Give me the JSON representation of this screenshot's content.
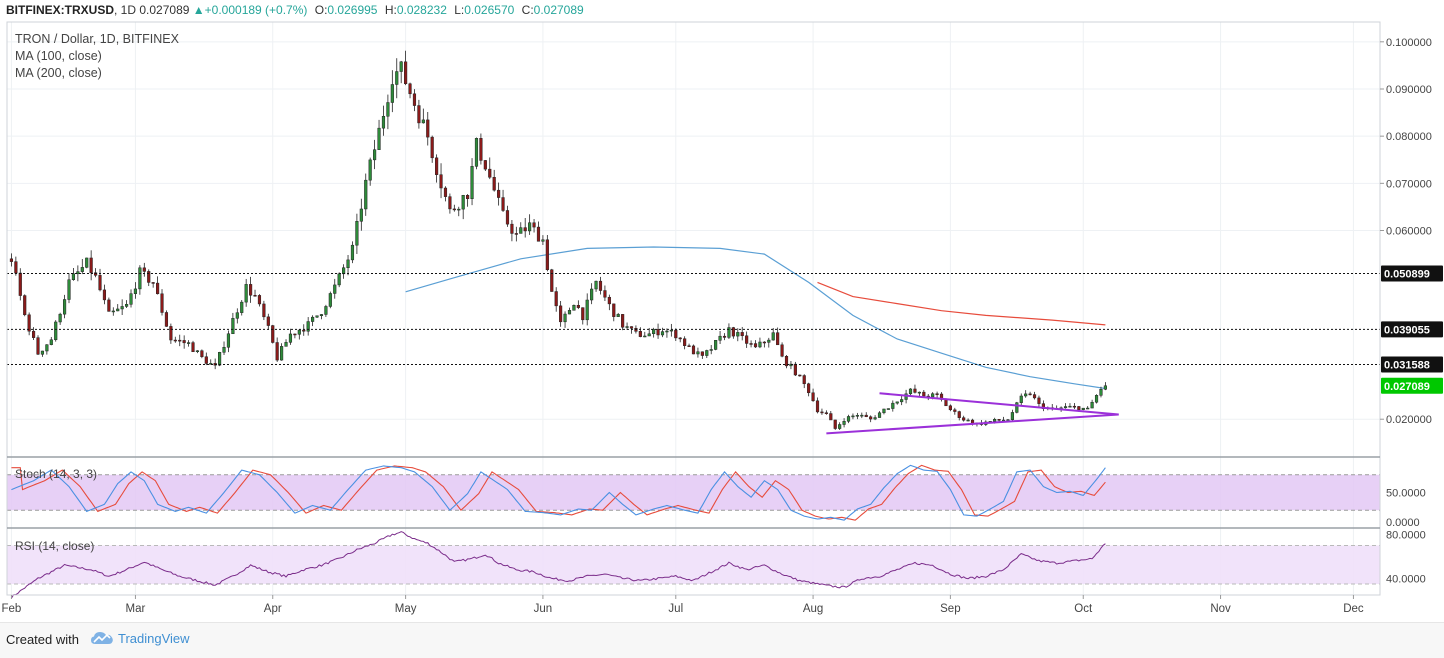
{
  "header": {
    "symbol": "BITFINEX:TRXUSD",
    "interval": "1D",
    "last": "0.027089",
    "change": "+0.000189 (+0.7%)",
    "open_label": "O:",
    "open": "0.026995",
    "high_label": "H:",
    "high": "0.028232",
    "low_label": "L:",
    "low": "0.026570",
    "close_label": "C:",
    "close": "0.027089",
    "up_color": "#26a69a"
  },
  "legend": {
    "title": "TRON / Dollar, 1D, BITFINEX",
    "ma100": "MA (100, close)",
    "ma200": "MA (200, close)"
  },
  "panes": {
    "stoch_label": "Stoch (14, 3, 3)",
    "rsi_label": "RSI (14, close)"
  },
  "footer": {
    "created_with": "Created with",
    "brand": "TradingView"
  },
  "chart_data": [
    {
      "type": "candlestick",
      "x_axis": {
        "ticks": [
          {
            "label": "Feb",
            "day": 0
          },
          {
            "label": "Mar",
            "day": 28
          },
          {
            "label": "Apr",
            "day": 59
          },
          {
            "label": "May",
            "day": 89
          },
          {
            "label": "Jun",
            "day": 120
          },
          {
            "label": "Jul",
            "day": 150
          },
          {
            "label": "Aug",
            "day": 181
          },
          {
            "label": "Sep",
            "day": 212
          },
          {
            "label": "Oct",
            "day": 242
          },
          {
            "label": "Nov",
            "day": 273
          },
          {
            "label": "Dec",
            "day": 303
          }
        ],
        "range": [
          -1,
          309
        ]
      },
      "y_axis": {
        "range": [
          0.0122,
          0.1042
        ],
        "ticks": [
          "0.100000",
          "0.090000",
          "0.080000",
          "0.070000",
          "0.060000",
          "0.020000"
        ]
      },
      "levels": [
        {
          "label": "0.050899",
          "value": 0.050899
        },
        {
          "label": "0.039055",
          "value": 0.039055
        },
        {
          "label": "0.031588",
          "value": 0.031588
        }
      ],
      "last_price": {
        "label": "0.027089",
        "value": 0.027089,
        "color": "#00c800"
      },
      "colors": {
        "up": "#2e8b3a",
        "down": "#8b1a1a",
        "ma100": "#5a9fd4",
        "ma200": "#e74c3c",
        "triangle": "#9b30d9"
      },
      "anchors": [
        [
          0,
          0.054
        ],
        [
          3,
          0.042
        ],
        [
          6,
          0.034
        ],
        [
          9,
          0.037
        ],
        [
          13,
          0.049
        ],
        [
          17,
          0.053
        ],
        [
          19,
          0.05
        ],
        [
          22,
          0.042
        ],
        [
          26,
          0.044
        ],
        [
          29,
          0.051
        ],
        [
          32,
          0.049
        ],
        [
          36,
          0.037
        ],
        [
          40,
          0.036
        ],
        [
          43,
          0.033
        ],
        [
          46,
          0.031
        ],
        [
          50,
          0.041
        ],
        [
          53,
          0.048
        ],
        [
          55,
          0.046
        ],
        [
          58,
          0.039
        ],
        [
          60,
          0.033
        ],
        [
          63,
          0.038
        ],
        [
          67,
          0.04
        ],
        [
          70,
          0.043
        ],
        [
          73,
          0.048
        ],
        [
          77,
          0.056
        ],
        [
          80,
          0.07
        ],
        [
          83,
          0.081
        ],
        [
          86,
          0.093
        ],
        [
          88,
          0.094
        ],
        [
          91,
          0.087
        ],
        [
          94,
          0.08
        ],
        [
          97,
          0.07
        ],
        [
          99,
          0.064
        ],
        [
          103,
          0.068
        ],
        [
          105,
          0.078
        ],
        [
          107,
          0.074
        ],
        [
          111,
          0.063
        ],
        [
          114,
          0.059
        ],
        [
          117,
          0.061
        ],
        [
          120,
          0.058
        ],
        [
          122,
          0.047
        ],
        [
          124,
          0.04
        ],
        [
          127,
          0.045
        ],
        [
          129,
          0.042
        ],
        [
          132,
          0.049
        ],
        [
          135,
          0.044
        ],
        [
          138,
          0.04
        ],
        [
          141,
          0.038
        ],
        [
          144,
          0.038
        ],
        [
          147,
          0.039
        ],
        [
          150,
          0.038
        ],
        [
          153,
          0.035
        ],
        [
          156,
          0.033
        ],
        [
          159,
          0.036
        ],
        [
          162,
          0.039
        ],
        [
          165,
          0.037
        ],
        [
          168,
          0.035
        ],
        [
          172,
          0.038
        ],
        [
          174,
          0.033
        ],
        [
          177,
          0.03
        ],
        [
          180,
          0.026
        ],
        [
          182,
          0.022
        ],
        [
          184,
          0.021
        ],
        [
          186,
          0.018
        ],
        [
          188,
          0.02
        ],
        [
          191,
          0.021
        ],
        [
          194,
          0.02
        ],
        [
          197,
          0.022
        ],
        [
          200,
          0.024
        ],
        [
          203,
          0.026
        ],
        [
          206,
          0.025
        ],
        [
          209,
          0.025
        ],
        [
          212,
          0.022
        ],
        [
          215,
          0.02
        ],
        [
          218,
          0.019
        ],
        [
          221,
          0.0195
        ],
        [
          225,
          0.02
        ],
        [
          228,
          0.0245
        ],
        [
          230,
          0.0255
        ],
        [
          232,
          0.023
        ],
        [
          235,
          0.022
        ],
        [
          238,
          0.0225
        ],
        [
          241,
          0.0225
        ],
        [
          243,
          0.022
        ],
        [
          245,
          0.025
        ],
        [
          246,
          0.0265
        ],
        [
          247,
          0.027089
        ]
      ],
      "ma100": [
        [
          89,
          0.047
        ],
        [
          100,
          0.05
        ],
        [
          115,
          0.054
        ],
        [
          130,
          0.0562
        ],
        [
          145,
          0.0565
        ],
        [
          160,
          0.0562
        ],
        [
          170,
          0.055
        ],
        [
          180,
          0.049
        ],
        [
          190,
          0.042
        ],
        [
          200,
          0.037
        ],
        [
          210,
          0.034
        ],
        [
          220,
          0.031
        ],
        [
          230,
          0.029
        ],
        [
          240,
          0.0275
        ],
        [
          247,
          0.0265
        ]
      ],
      "ma200": [
        [
          182,
          0.049
        ],
        [
          190,
          0.046
        ],
        [
          200,
          0.0445
        ],
        [
          210,
          0.043
        ],
        [
          220,
          0.042
        ],
        [
          235,
          0.041
        ],
        [
          247,
          0.04
        ]
      ],
      "triangle": [
        [
          196,
          0.0255
        ],
        [
          250,
          0.021
        ],
        [
          184,
          0.017
        ],
        [
          250,
          0.021
        ]
      ]
    },
    {
      "type": "line",
      "name": "Stoch (14, 3, 3)",
      "y_axis": {
        "range": [
          0,
          100
        ],
        "ticks": [
          "50.0000",
          "0.0000"
        ],
        "bands": [
          20,
          80
        ]
      },
      "colors": {
        "k": "#4a90e2",
        "d": "#e74c3c",
        "fill": "#e3c8f5"
      },
      "k_anchors": [
        [
          0,
          55
        ],
        [
          5,
          70
        ],
        [
          9,
          88
        ],
        [
          13,
          60
        ],
        [
          17,
          18
        ],
        [
          21,
          30
        ],
        [
          24,
          65
        ],
        [
          27,
          85
        ],
        [
          30,
          70
        ],
        [
          33,
          30
        ],
        [
          37,
          18
        ],
        [
          40,
          25
        ],
        [
          44,
          15
        ],
        [
          48,
          50
        ],
        [
          52,
          88
        ],
        [
          56,
          80
        ],
        [
          60,
          50
        ],
        [
          64,
          15
        ],
        [
          68,
          28
        ],
        [
          72,
          20
        ],
        [
          76,
          55
        ],
        [
          80,
          88
        ],
        [
          84,
          95
        ],
        [
          88,
          92
        ],
        [
          91,
          85
        ],
        [
          95,
          60
        ],
        [
          99,
          20
        ],
        [
          103,
          48
        ],
        [
          106,
          85
        ],
        [
          109,
          70
        ],
        [
          112,
          55
        ],
        [
          116,
          18
        ],
        [
          120,
          16
        ],
        [
          124,
          12
        ],
        [
          128,
          22
        ],
        [
          131,
          20
        ],
        [
          135,
          50
        ],
        [
          138,
          30
        ],
        [
          141,
          12
        ],
        [
          145,
          22
        ],
        [
          148,
          28
        ],
        [
          152,
          20
        ],
        [
          155,
          15
        ],
        [
          158,
          55
        ],
        [
          161,
          85
        ],
        [
          164,
          60
        ],
        [
          167,
          42
        ],
        [
          170,
          70
        ],
        [
          173,
          55
        ],
        [
          176,
          20
        ],
        [
          179,
          10
        ],
        [
          182,
          5
        ],
        [
          185,
          8
        ],
        [
          188,
          3
        ],
        [
          191,
          22
        ],
        [
          194,
          30
        ],
        [
          197,
          58
        ],
        [
          200,
          82
        ],
        [
          203,
          96
        ],
        [
          206,
          88
        ],
        [
          209,
          86
        ],
        [
          212,
          55
        ],
        [
          215,
          12
        ],
        [
          218,
          10
        ],
        [
          221,
          22
        ],
        [
          224,
          35
        ],
        [
          227,
          85
        ],
        [
          230,
          88
        ],
        [
          233,
          60
        ],
        [
          236,
          50
        ],
        [
          239,
          52
        ],
        [
          242,
          45
        ],
        [
          245,
          72
        ],
        [
          247,
          92
        ]
      ]
    },
    {
      "type": "line",
      "name": "RSI (14, close)",
      "y_axis": {
        "range": [
          25,
          85
        ],
        "ticks": [
          "80.0000",
          "40.0000"
        ],
        "bands": [
          35,
          70
        ]
      },
      "colors": {
        "line": "#7b2d8b",
        "fill": "#f0e0fa"
      },
      "anchors": [
        [
          0,
          23
        ],
        [
          6,
          40
        ],
        [
          12,
          52
        ],
        [
          18,
          48
        ],
        [
          22,
          42
        ],
        [
          26,
          48
        ],
        [
          30,
          55
        ],
        [
          34,
          48
        ],
        [
          38,
          42
        ],
        [
          42,
          38
        ],
        [
          46,
          34
        ],
        [
          50,
          42
        ],
        [
          54,
          52
        ],
        [
          58,
          46
        ],
        [
          62,
          42
        ],
        [
          66,
          48
        ],
        [
          70,
          52
        ],
        [
          74,
          58
        ],
        [
          78,
          66
        ],
        [
          82,
          72
        ],
        [
          86,
          80
        ],
        [
          88,
          82
        ],
        [
          91,
          76
        ],
        [
          94,
          72
        ],
        [
          97,
          64
        ],
        [
          100,
          55
        ],
        [
          104,
          58
        ],
        [
          107,
          62
        ],
        [
          110,
          54
        ],
        [
          114,
          48
        ],
        [
          118,
          46
        ],
        [
          122,
          40
        ],
        [
          126,
          38
        ],
        [
          130,
          42
        ],
        [
          134,
          44
        ],
        [
          138,
          40
        ],
        [
          142,
          38
        ],
        [
          146,
          40
        ],
        [
          150,
          42
        ],
        [
          154,
          38
        ],
        [
          158,
          46
        ],
        [
          162,
          54
        ],
        [
          166,
          48
        ],
        [
          170,
          52
        ],
        [
          174,
          44
        ],
        [
          178,
          38
        ],
        [
          182,
          35
        ],
        [
          185,
          33
        ],
        [
          188,
          32
        ],
        [
          192,
          40
        ],
        [
          196,
          42
        ],
        [
          200,
          48
        ],
        [
          204,
          54
        ],
        [
          208,
          52
        ],
        [
          212,
          44
        ],
        [
          216,
          40
        ],
        [
          220,
          42
        ],
        [
          224,
          48
        ],
        [
          228,
          62
        ],
        [
          232,
          56
        ],
        [
          236,
          54
        ],
        [
          240,
          56
        ],
        [
          244,
          58
        ],
        [
          247,
          72
        ]
      ]
    }
  ]
}
